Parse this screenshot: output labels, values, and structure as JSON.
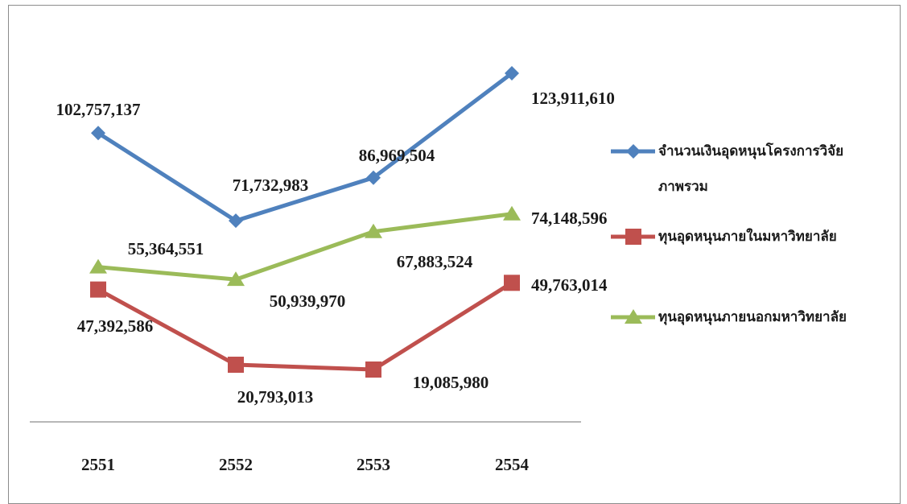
{
  "chart_data": {
    "type": "line",
    "categories": [
      "2551",
      "2552",
      "2553",
      "2554"
    ],
    "series": [
      {
        "name": "จำนวนเงินอุดหนุนโครงการวิจัยภาพรวม",
        "legend_lines": [
          "จำนวนเงินอุดหนุนโครงการวิจัย",
          "ภาพรวม"
        ],
        "marker": "diamond",
        "color": "#4f81bd",
        "values": [
          102757137,
          71732983,
          86969504,
          123911610
        ],
        "labels": [
          "102,757,137",
          "71,732,983",
          "86,969,504",
          "123,911,610"
        ]
      },
      {
        "name": "ทุนอุดหนุนภายในมหาวิทยาลัย",
        "legend_lines": [
          "ทุนอุดหนุนภายในมหาวิทยาลัย"
        ],
        "marker": "square",
        "color": "#c0504d",
        "values": [
          47392586,
          20793013,
          19085980,
          49763014
        ],
        "labels": [
          "47,392,586",
          "20,793,013",
          "19,085,980",
          "49,763,014"
        ]
      },
      {
        "name": "ทุนอุดหนุนภายนอกมหาวิทยาลัย",
        "legend_lines": [
          "ทุนอุดหนุนภายนอกมหาวิทยาลัย"
        ],
        "marker": "triangle",
        "color": "#9bbb59",
        "values": [
          55364551,
          50939970,
          67883524,
          74148596
        ],
        "labels": [
          "55,364,551",
          "50,939,970",
          "67,883,524",
          "74,148,596"
        ]
      }
    ],
    "ylim": [
      0,
      130000000
    ],
    "grid": false,
    "legend_position": "right"
  }
}
